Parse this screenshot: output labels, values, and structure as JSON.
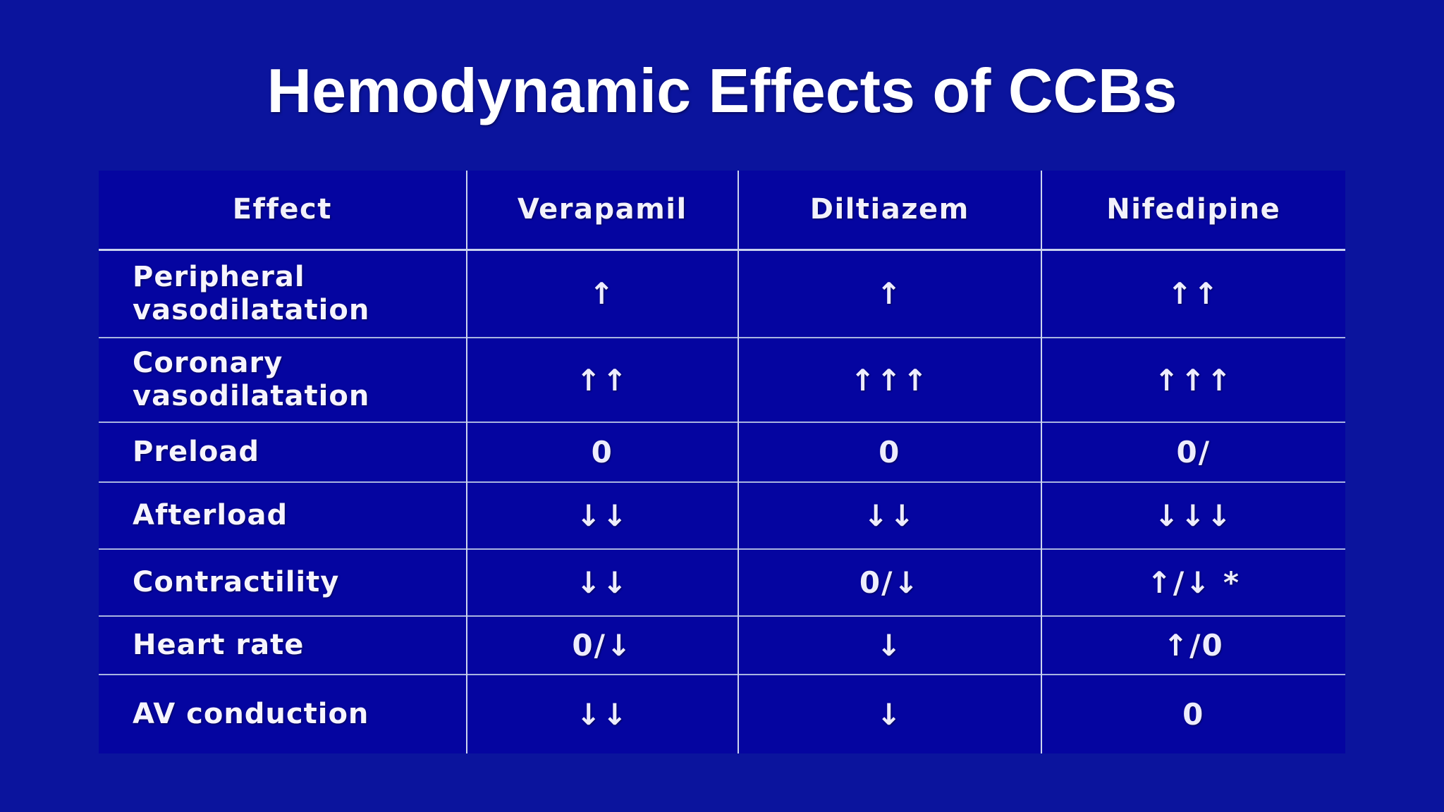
{
  "chart_data": {
    "type": "table",
    "title": "Hemodynamic Effects of CCBs",
    "columns": [
      "Effect",
      "Verapamil",
      "Diltiazem",
      "Nifedipine"
    ],
    "rows": [
      {
        "label": "Peripheral vasodilatation",
        "values": [
          "↑",
          "↑",
          "↑↑"
        ]
      },
      {
        "label": "Coronary vasodilatation",
        "values": [
          "↑↑",
          "↑↑↑",
          "↑↑↑"
        ]
      },
      {
        "label": "Preload",
        "values": [
          "0",
          "0",
          "0/"
        ]
      },
      {
        "label": "Afterload",
        "values": [
          "↓↓",
          "↓↓",
          "↓↓↓"
        ]
      },
      {
        "label": "Contractility",
        "values": [
          "↓↓",
          "0/↓",
          "↑/↓ *"
        ]
      },
      {
        "label": "Heart rate",
        "values": [
          "0/↓",
          "↓",
          "↑/0"
        ]
      },
      {
        "label": "AV conduction",
        "values": [
          "↓↓",
          "↓",
          "0"
        ]
      }
    ],
    "legend": "off",
    "grid": "on"
  },
  "colors": {
    "page_background": "#0b149d",
    "table_background": "#0505a0",
    "grid_line": "#a9b4e0",
    "column_line": "#cdd5ee",
    "text": "#f3f2fc",
    "title": "#ffffff"
  }
}
